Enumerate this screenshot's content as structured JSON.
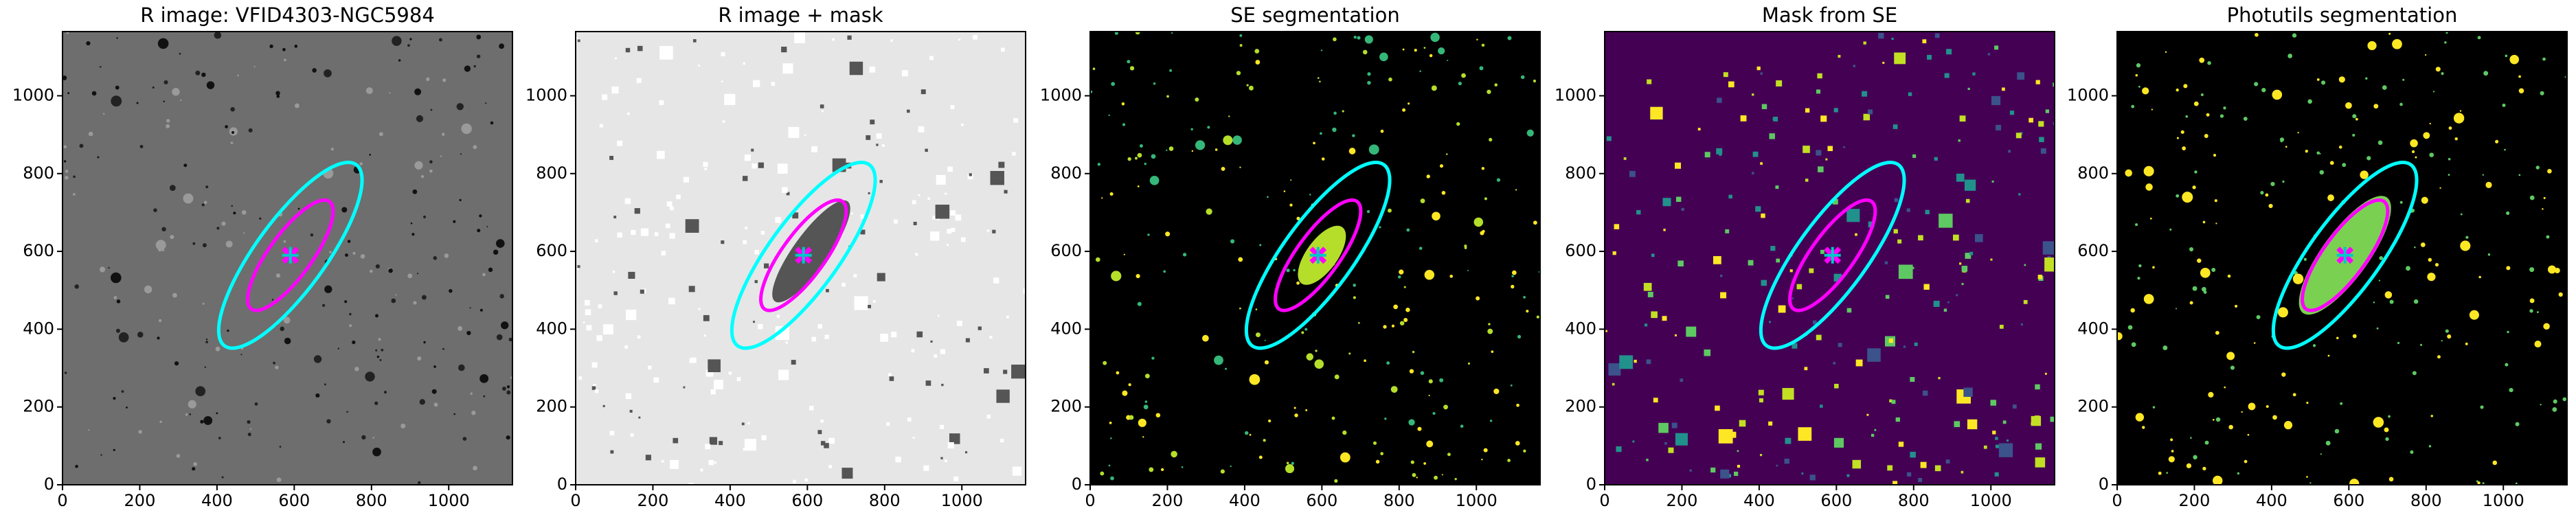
{
  "chart_data": [
    {
      "type": "image",
      "title": "R image: VFID4303-NGC5984",
      "background": "#6e6e6e",
      "speckle_colors": [
        "#111111",
        "#222222",
        "#9a9a9a"
      ],
      "xlim": [
        0,
        1165
      ],
      "ylim": [
        0,
        1165
      ],
      "xticks": [
        0,
        200,
        400,
        600,
        800,
        1000
      ],
      "yticks": [
        0,
        200,
        400,
        600,
        800,
        1000
      ],
      "ellipses": [
        {
          "x": 590,
          "y": 590,
          "a": 290,
          "b": 90,
          "angle": 54,
          "color": "#00ffff"
        },
        {
          "x": 590,
          "y": 590,
          "a": 172,
          "b": 55,
          "angle": 54,
          "color": "#ff00ff"
        }
      ],
      "center": {
        "x": 590,
        "y": 590
      }
    },
    {
      "type": "image",
      "title": "R image + mask",
      "background": "#e6e6e6",
      "speckle_colors": [
        "#ffffff",
        "#ffffff",
        "#555555"
      ],
      "xlim": [
        0,
        1165
      ],
      "ylim": [
        0,
        1165
      ],
      "xticks": [
        0,
        200,
        400,
        600,
        800,
        1000
      ],
      "yticks": [
        0,
        200,
        400,
        600,
        800,
        1000
      ],
      "ellipses": [
        {
          "x": 610,
          "y": 600,
          "a": 160,
          "b": 45,
          "angle": 54,
          "color": "none",
          "fill": "#555555"
        },
        {
          "x": 590,
          "y": 590,
          "a": 290,
          "b": 90,
          "angle": 54,
          "color": "#00ffff"
        },
        {
          "x": 590,
          "y": 590,
          "a": 172,
          "b": 55,
          "angle": 54,
          "color": "#ff00ff"
        }
      ],
      "center": {
        "x": 590,
        "y": 590
      }
    },
    {
      "type": "image",
      "title": "SE segmentation",
      "background": "#000000",
      "speckle_colors": [
        "#fde725",
        "#b5de2b",
        "#35b779"
      ],
      "xlim": [
        0,
        1165
      ],
      "ylim": [
        0,
        1165
      ],
      "xticks": [
        0,
        200,
        400,
        600,
        800,
        1000
      ],
      "yticks": [
        0,
        200,
        400,
        600,
        800,
        1000
      ],
      "ellipses": [
        {
          "x": 600,
          "y": 590,
          "a": 90,
          "b": 40,
          "angle": 54,
          "color": "none",
          "fill": "#b5de2b"
        },
        {
          "x": 590,
          "y": 590,
          "a": 290,
          "b": 90,
          "angle": 54,
          "color": "#00ffff"
        },
        {
          "x": 590,
          "y": 590,
          "a": 172,
          "b": 55,
          "angle": 54,
          "color": "#ff00ff"
        }
      ],
      "center": {
        "x": 590,
        "y": 590
      }
    },
    {
      "type": "image",
      "title": "Mask from SE",
      "background": "#440154",
      "speckle_colors": [
        "#3b528b",
        "#21918c",
        "#5ec962",
        "#c2df23",
        "#fde725"
      ],
      "xlim": [
        0,
        1165
      ],
      "ylim": [
        0,
        1165
      ],
      "xticks": [
        0,
        200,
        400,
        600,
        800,
        1000
      ],
      "yticks": [
        0,
        200,
        400,
        600,
        800,
        1000
      ],
      "ellipses": [
        {
          "x": 590,
          "y": 590,
          "a": 290,
          "b": 90,
          "angle": 54,
          "color": "#00ffff"
        },
        {
          "x": 590,
          "y": 590,
          "a": 172,
          "b": 55,
          "angle": 54,
          "color": "#ff00ff"
        }
      ],
      "center": {
        "x": 590,
        "y": 590
      }
    },
    {
      "type": "image",
      "title": "Photutils segmentation",
      "background": "#000000",
      "speckle_colors": [
        "#fde725",
        "#5ec962"
      ],
      "xlim": [
        0,
        1165
      ],
      "ylim": [
        0,
        1165
      ],
      "xticks": [
        0,
        200,
        400,
        600,
        800,
        1000
      ],
      "yticks": [
        0,
        200,
        400,
        600,
        800,
        1000
      ],
      "ellipses": [
        {
          "x": 590,
          "y": 590,
          "a": 185,
          "b": 60,
          "angle": 54,
          "color": "none",
          "fill": "#7ad151"
        },
        {
          "x": 590,
          "y": 590,
          "a": 290,
          "b": 90,
          "angle": 54,
          "color": "#00ffff"
        },
        {
          "x": 590,
          "y": 590,
          "a": 172,
          "b": 55,
          "angle": 54,
          "color": "#ff00ff"
        }
      ],
      "center": {
        "x": 590,
        "y": 590
      }
    }
  ]
}
